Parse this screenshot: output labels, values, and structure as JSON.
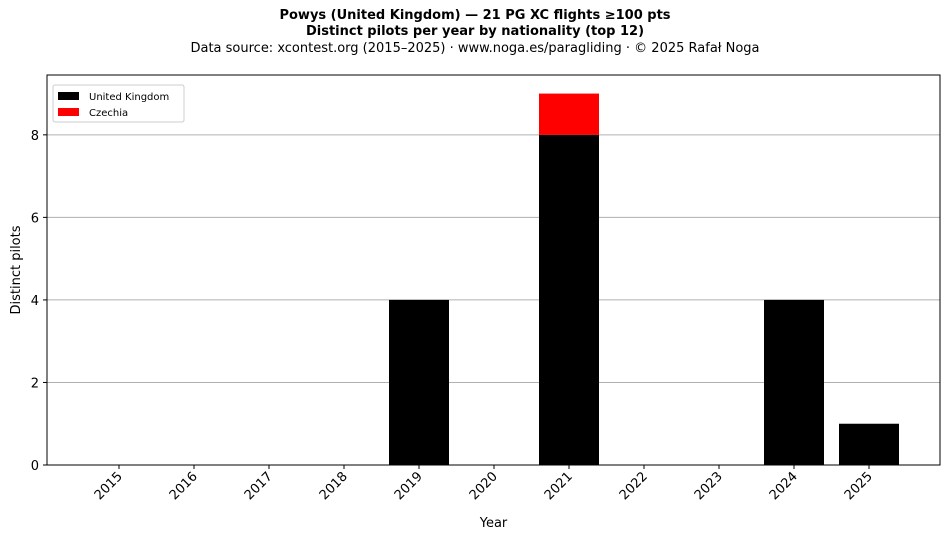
{
  "header": {
    "title": "Powys (United Kingdom)  —  21 PG XC flights ≥100 pts",
    "subtitle": "Distinct pilots per year by nationality (top 12)",
    "source": "Data source: xcontest.org (2015–2025)  ·  www.noga.es/paragliding  ·  © 2025 Rafał Noga"
  },
  "chart_data": {
    "type": "bar",
    "stacked": true,
    "title": "Powys (United Kingdom)  —  21 PG XC flights ≥100 pts",
    "subtitle": "Distinct pilots per year by nationality (top 12)",
    "xlabel": "Year",
    "ylabel": "Distinct pilots",
    "categories": [
      "2015",
      "2016",
      "2017",
      "2018",
      "2019",
      "2020",
      "2021",
      "2022",
      "2023",
      "2024",
      "2025"
    ],
    "series": [
      {
        "name": "United Kingdom",
        "color": "#000000",
        "values": [
          0,
          0,
          0,
          0,
          4,
          0,
          8,
          0,
          0,
          4,
          1
        ]
      },
      {
        "name": "Czechia",
        "color": "#ff0000",
        "values": [
          0,
          0,
          0,
          0,
          0,
          0,
          1,
          0,
          0,
          0,
          0
        ]
      }
    ],
    "ylim": [
      0,
      9.45
    ],
    "yticks": [
      0,
      2,
      4,
      6,
      8
    ],
    "grid": "y",
    "legend": "top-left"
  }
}
